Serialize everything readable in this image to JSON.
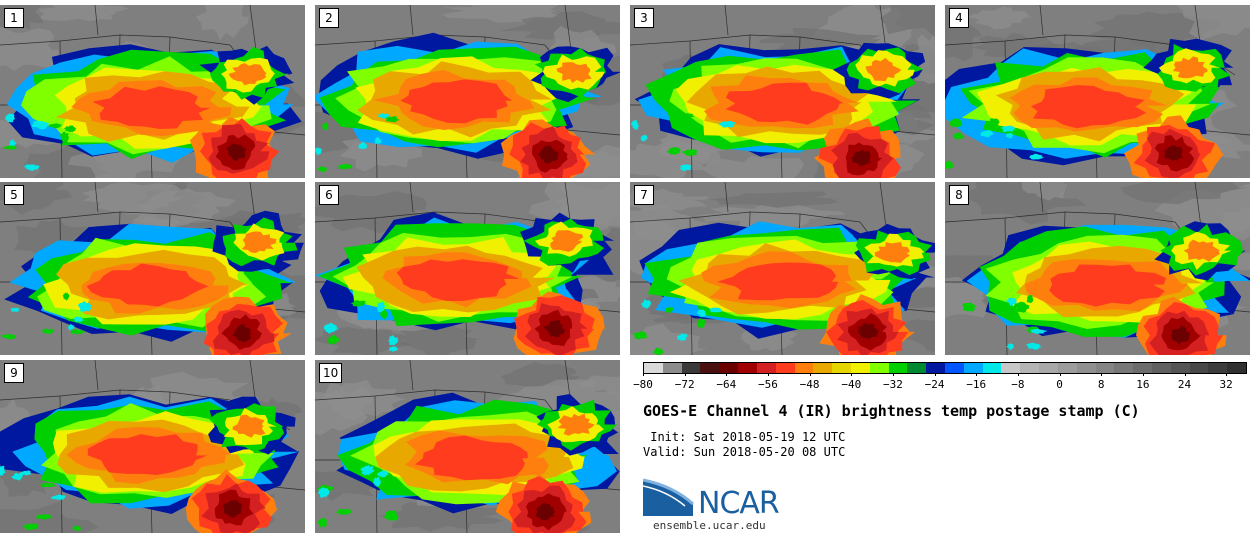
{
  "panels": [
    {
      "label": "1",
      "variant": 0
    },
    {
      "label": "2",
      "variant": 1
    },
    {
      "label": "3",
      "variant": 2
    },
    {
      "label": "4",
      "variant": 3
    },
    {
      "label": "5",
      "variant": 4
    },
    {
      "label": "6",
      "variant": 5
    },
    {
      "label": "7",
      "variant": 6
    },
    {
      "label": "8",
      "variant": 7
    },
    {
      "label": "9",
      "variant": 8
    },
    {
      "label": "10",
      "variant": 9
    }
  ],
  "colorbar": {
    "min": -80,
    "max": 36,
    "ticks": [
      "−80",
      "−72",
      "−64",
      "−56",
      "−48",
      "−40",
      "−32",
      "−24",
      "−16",
      "−8",
      "0",
      "8",
      "16",
      "24",
      "32"
    ],
    "tick_values": [
      -80,
      -72,
      -64,
      -56,
      -48,
      -40,
      -32,
      -24,
      -16,
      -8,
      0,
      8,
      16,
      24,
      32
    ],
    "colors": [
      "#d9d9d9",
      "#8c8c8c",
      "#3a3a3a",
      "#4a1010",
      "#6b0000",
      "#a00000",
      "#d42020",
      "#ff3c1e",
      "#ff7f0e",
      "#e8a800",
      "#e6d600",
      "#f0f000",
      "#80ff00",
      "#00d000",
      "#008a30",
      "#0018a0",
      "#0055ff",
      "#00a8ff",
      "#00e8e8",
      "#c8c8c8",
      "#b4b4b4",
      "#a8a8a8",
      "#9c9c9c",
      "#909090",
      "#848484",
      "#787878",
      "#6c6c6c",
      "#606060",
      "#545454",
      "#484848",
      "#3c3c3c",
      "#303030"
    ]
  },
  "title": "GOES-E Channel 4 (IR) brightness temp postage stamp (C)",
  "init": " Init: Sat 2018-05-19 12 UTC",
  "valid": "Valid: Sun 2018-05-20 08 UTC",
  "logo": {
    "text": "NCAR",
    "url": "ensemble.ucar.edu",
    "color": "#1a5fa0"
  }
}
